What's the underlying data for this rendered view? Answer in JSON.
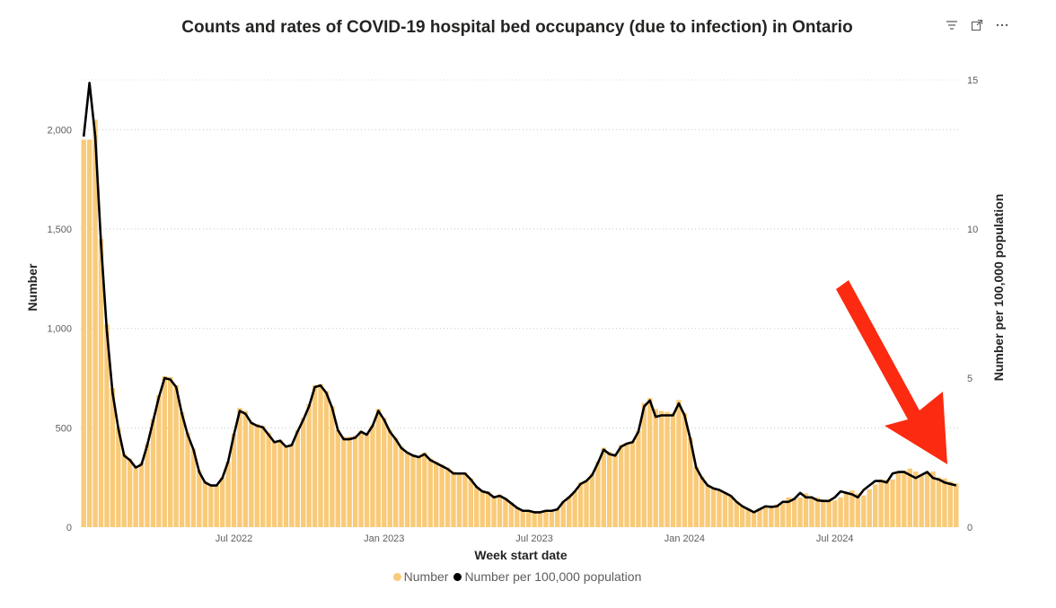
{
  "chart_data": {
    "type": "bar+line",
    "title": "Counts and rates of COVID-19 hospital bed occupancy (due to infection) in Ontario",
    "xlabel": "Week start date",
    "ylabel_left": "Number",
    "ylabel_right": "Number per 100,000 population",
    "x_start": "2022-01-03",
    "x_step_days": 7,
    "x_tick_labels": [
      "Jul 2022",
      "Jan 2023",
      "Jul 2023",
      "Jan 2024",
      "Jul 2024"
    ],
    "x_tick_dates": [
      "2022-07-04",
      "2023-01-02",
      "2023-07-03",
      "2024-01-01",
      "2024-07-01"
    ],
    "y_left_ticks": [
      0,
      500,
      1000,
      1500,
      2000
    ],
    "y_left_tick_labels": [
      "0",
      "500",
      "1,000",
      "1,500",
      "2,000"
    ],
    "y_left_range": [
      0,
      2300
    ],
    "y_right_ticks": [
      0,
      5,
      10,
      15
    ],
    "y_right_tick_labels": [
      "0",
      "5",
      "10",
      "15"
    ],
    "y_right_range": [
      0,
      15.06
    ],
    "gridlines": true,
    "legend_position": "bottom",
    "series": [
      {
        "name": "Number",
        "type": "bar",
        "color": "#f9ca78",
        "axis": "left",
        "values": [
          1950,
          1950,
          2050,
          1450,
          1020,
          700,
          500,
          370,
          345,
          305,
          325,
          420,
          545,
          665,
          760,
          755,
          715,
          580,
          475,
          395,
          285,
          230,
          215,
          210,
          250,
          330,
          470,
          600,
          585,
          530,
          520,
          510,
          475,
          435,
          440,
          410,
          420,
          490,
          550,
          620,
          715,
          720,
          685,
          610,
          490,
          455,
          455,
          460,
          485,
          470,
          515,
          595,
          550,
          490,
          450,
          405,
          380,
          365,
          355,
          375,
          345,
          330,
          315,
          300,
          280,
          275,
          275,
          245,
          205,
          185,
          180,
          155,
          165,
          145,
          125,
          100,
          85,
          85,
          80,
          80,
          85,
          85,
          90,
          130,
          155,
          180,
          225,
          235,
          270,
          330,
          400,
          380,
          370,
          415,
          425,
          435,
          485,
          625,
          650,
          595,
          585,
          580,
          575,
          640,
          575,
          450,
          305,
          255,
          215,
          200,
          190,
          175,
          160,
          130,
          110,
          90,
          80,
          95,
          100,
          105,
          115,
          120,
          150,
          145,
          150,
          170,
          145,
          150,
          140,
          135,
          135,
          150,
          175,
          185,
          170,
          160,
          190,
          215,
          240,
          240,
          240,
          280,
          285,
          295,
          280,
          260,
          270,
          280,
          250,
          245,
          230,
          220
        ]
      },
      {
        "name": "Number per 100,000 population",
        "type": "line",
        "color": "#000000",
        "axis": "right",
        "values": [
          13.1,
          14.9,
          13.1,
          9.5,
          6.6,
          4.5,
          3.3,
          2.4,
          2.25,
          2.0,
          2.1,
          2.75,
          3.55,
          4.35,
          5.0,
          4.95,
          4.7,
          3.8,
          3.1,
          2.6,
          1.85,
          1.5,
          1.4,
          1.4,
          1.65,
          2.2,
          3.1,
          3.9,
          3.8,
          3.5,
          3.4,
          3.35,
          3.1,
          2.85,
          2.9,
          2.7,
          2.75,
          3.2,
          3.6,
          4.05,
          4.7,
          4.75,
          4.5,
          4.0,
          3.25,
          2.95,
          2.95,
          3.0,
          3.2,
          3.1,
          3.4,
          3.9,
          3.6,
          3.2,
          2.95,
          2.65,
          2.5,
          2.4,
          2.35,
          2.45,
          2.25,
          2.15,
          2.05,
          1.95,
          1.8,
          1.8,
          1.8,
          1.6,
          1.35,
          1.2,
          1.15,
          1.0,
          1.05,
          0.95,
          0.8,
          0.65,
          0.55,
          0.55,
          0.5,
          0.5,
          0.55,
          0.55,
          0.6,
          0.85,
          1.0,
          1.2,
          1.45,
          1.55,
          1.75,
          2.15,
          2.6,
          2.45,
          2.4,
          2.7,
          2.8,
          2.85,
          3.2,
          4.05,
          4.25,
          3.7,
          3.75,
          3.75,
          3.75,
          4.15,
          3.75,
          2.95,
          2.0,
          1.65,
          1.4,
          1.3,
          1.25,
          1.15,
          1.05,
          0.85,
          0.7,
          0.6,
          0.5,
          0.6,
          0.7,
          0.68,
          0.7,
          0.85,
          0.85,
          0.95,
          1.15,
          1.0,
          1.0,
          0.9,
          0.88,
          0.88,
          1.0,
          1.2,
          1.15,
          1.1,
          1.0,
          1.25,
          1.4,
          1.55,
          1.55,
          1.5,
          1.8,
          1.85,
          1.85,
          1.75,
          1.65,
          1.75,
          1.85,
          1.65,
          1.6,
          1.5,
          1.45,
          1.4
        ]
      }
    ]
  },
  "legend": {
    "items": [
      {
        "label": "Number",
        "color": "#f9ca78"
      },
      {
        "label": "Number per 100,000 population",
        "color": "#000000"
      }
    ]
  },
  "toolbar": {
    "icons": [
      "filter-icon",
      "focus-mode-icon",
      "more-options-icon"
    ]
  }
}
